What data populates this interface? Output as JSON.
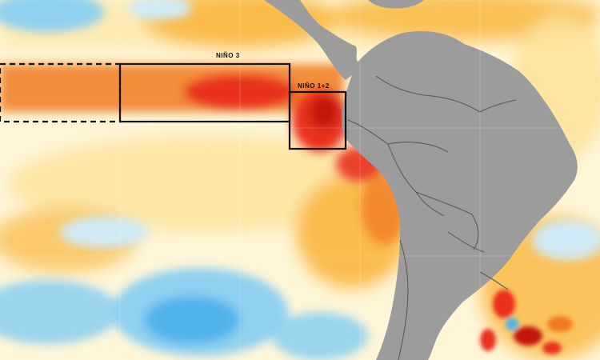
{
  "map": {
    "kind": "sea-surface-temperature-anomaly",
    "colors": {
      "ocean_neutral": "#fff6d8",
      "warm_light": "#fde29a",
      "warm_medium": "#f9b63f",
      "warm_strong": "#f07a22",
      "hot": "#e8321d",
      "very_hot": "#c2140f",
      "cool_light": "#cfeaf6",
      "cool_medium": "#8fd0f0",
      "cool_strong": "#4fb3ea",
      "land": "#9c9c9c",
      "border": "#555555",
      "box_outline": "#111111"
    },
    "regions": [
      {
        "id": "nino3",
        "label": "NIÑO 3",
        "outline": "solid"
      },
      {
        "id": "nino12",
        "label": "NIÑO 1+2",
        "outline": "solid"
      },
      {
        "id": "nino34-west",
        "label": "",
        "outline": "dashed"
      }
    ]
  }
}
